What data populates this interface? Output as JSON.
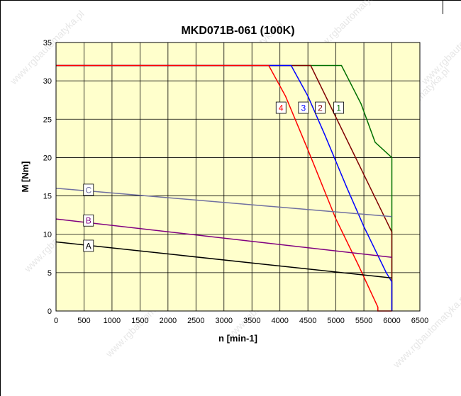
{
  "chart_data": {
    "type": "line",
    "title": "MKD071B-061 (100K)",
    "xlabel": "n [min-1]",
    "ylabel": "M [Nm]",
    "xlim": [
      0,
      6500
    ],
    "ylim": [
      0,
      35
    ],
    "x_ticks": [
      0,
      500,
      1000,
      1500,
      2000,
      2500,
      3000,
      3500,
      4000,
      4500,
      5000,
      5500,
      6000,
      6500
    ],
    "y_ticks": [
      0,
      5,
      10,
      15,
      20,
      25,
      30,
      35
    ],
    "grid": true,
    "plot_background": "#ffffcc",
    "series": [
      {
        "name": "1",
        "color": "#007000",
        "label_at": [
          5050,
          26.5
        ],
        "points": [
          [
            0,
            32
          ],
          [
            5100,
            32
          ],
          [
            5450,
            27
          ],
          [
            5700,
            22
          ],
          [
            6000,
            20
          ],
          [
            6000,
            0
          ]
        ]
      },
      {
        "name": "2",
        "color": "#800000",
        "label_at": [
          4720,
          26.5
        ],
        "points": [
          [
            0,
            32
          ],
          [
            4550,
            32
          ],
          [
            6000,
            10.3
          ],
          [
            6000,
            0
          ]
        ]
      },
      {
        "name": "3",
        "color": "#0000ff",
        "label_at": [
          4420,
          26.5
        ],
        "points": [
          [
            0,
            32
          ],
          [
            4200,
            32
          ],
          [
            4500,
            28
          ],
          [
            4800,
            23
          ],
          [
            5200,
            16
          ],
          [
            5500,
            11
          ],
          [
            5900,
            5
          ],
          [
            6000,
            3.8
          ],
          [
            6000,
            0
          ]
        ]
      },
      {
        "name": "4",
        "color": "#ff0000",
        "label_at": [
          4020,
          26.5
        ],
        "points": [
          [
            0,
            32
          ],
          [
            3800,
            32
          ],
          [
            4100,
            28
          ],
          [
            4500,
            21
          ],
          [
            5000,
            12
          ],
          [
            5400,
            6
          ],
          [
            5750,
            0.5
          ],
          [
            5750,
            0
          ],
          [
            6000,
            0
          ]
        ]
      },
      {
        "name": "C",
        "color": "#7070a0",
        "label_at": [
          580,
          15.8
        ],
        "points": [
          [
            0,
            16
          ],
          [
            6000,
            12.3
          ]
        ]
      },
      {
        "name": "B",
        "color": "#800080",
        "label_at": [
          580,
          11.8
        ],
        "points": [
          [
            0,
            12
          ],
          [
            6000,
            7
          ]
        ]
      },
      {
        "name": "A",
        "color": "#000000",
        "label_at": [
          580,
          8.5
        ],
        "points": [
          [
            0,
            9
          ],
          [
            6000,
            4.3
          ]
        ]
      }
    ]
  },
  "watermark": "www.rgbautomatyka.pl"
}
